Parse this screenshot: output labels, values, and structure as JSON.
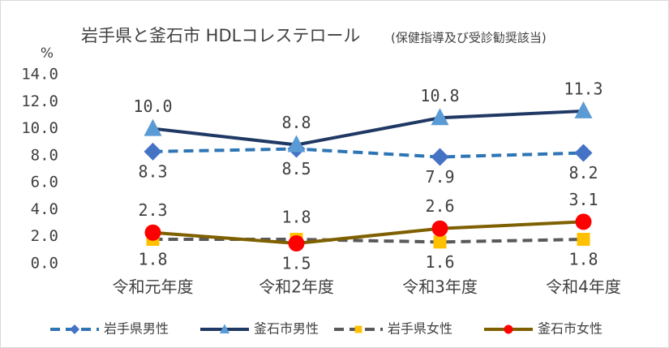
{
  "chart_data": {
    "type": "line",
    "title": "岩手県と釜石市 HDLコレステロール",
    "subtitle": "(保健指導及び受診勧奨該当)",
    "y_unit": "%",
    "categories": [
      "令和元年度",
      "令和2年度",
      "令和3年度",
      "令和4年度"
    ],
    "series": [
      {
        "name": "岩手県男性",
        "color": "#2e75b6",
        "marker_color": "#4472c4",
        "dash": true,
        "marker": "diamond",
        "values": [
          8.3,
          8.5,
          7.9,
          8.2
        ],
        "value_labels": [
          "8.3",
          "8.5",
          "7.9",
          "8.2"
        ]
      },
      {
        "name": "釜石市男性",
        "color": "#1f3864",
        "marker_color": "#5b9bd5",
        "dash": false,
        "marker": "triangle",
        "values": [
          10,
          8.8,
          10.8,
          11.3
        ],
        "value_labels": [
          "10.0",
          "8.8",
          "10.8",
          "11.3"
        ]
      },
      {
        "name": "岩手県女性",
        "color": "#595959",
        "marker_color": "#ffc000",
        "dash": true,
        "marker": "square",
        "values": [
          1.8,
          1.8,
          1.6,
          1.8
        ],
        "value_labels": [
          "1.8",
          "1.8",
          "1.6",
          "1.8"
        ]
      },
      {
        "name": "釜石市女性",
        "color": "#7f6000",
        "marker_color": "#ff0000",
        "dash": false,
        "marker": "circle",
        "values": [
          2.3,
          1.5,
          2.6,
          3.1
        ],
        "value_labels": [
          "2.3",
          "1.5",
          "2.6",
          "3.1"
        ]
      }
    ],
    "ylim": [
      0,
      14
    ],
    "yticks": [
      {
        "value": 0,
        "label": "0.0"
      },
      {
        "value": 2,
        "label": "2.0"
      },
      {
        "value": 4,
        "label": "4.0"
      },
      {
        "value": 6,
        "label": "6.0"
      },
      {
        "value": 8,
        "label": "8.0"
      },
      {
        "value": 10,
        "label": "10.0"
      },
      {
        "value": 12,
        "label": "12.0"
      },
      {
        "value": 14,
        "label": "14.0"
      }
    ],
    "grid": false,
    "legend": "bottom"
  }
}
